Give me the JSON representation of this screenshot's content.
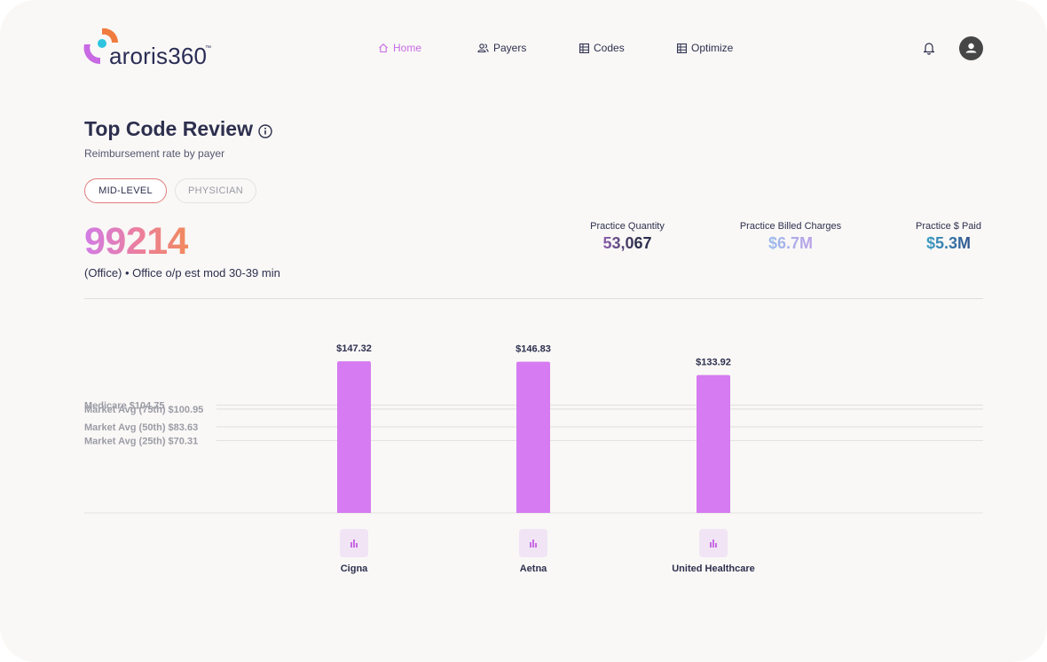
{
  "app": {
    "logo_text": "aroris360",
    "logo_tm": "™"
  },
  "nav": [
    {
      "label": "Home",
      "icon": "home-icon",
      "active": true
    },
    {
      "label": "Payers",
      "icon": "users-icon",
      "active": false
    },
    {
      "label": "Codes",
      "icon": "table-icon",
      "active": false
    },
    {
      "label": "Optimize",
      "icon": "table-icon",
      "active": false
    }
  ],
  "header": {
    "bell_icon": "bell-icon",
    "avatar_icon": "user-avatar-icon"
  },
  "page": {
    "title": "Top Code Review",
    "subtitle": "Reimbursement rate by payer",
    "toggle": {
      "mid_level": "MID-LEVEL",
      "physician": "PHYSICIAN",
      "selected": "MID-LEVEL"
    },
    "code": "99214",
    "code_description": "(Office) • Office o/p est mod 30-39 min"
  },
  "stats": {
    "quantity": {
      "label": "Practice Quantity",
      "value": "53,067"
    },
    "billed": {
      "label": "Practice Billed Charges",
      "value": "$6.7M"
    },
    "paid": {
      "label": "Practice $ Paid",
      "value": "$5.3M"
    }
  },
  "colors": {
    "bar": "#d67bf1",
    "accent": "#c86ae3",
    "ref_line": "#e4e3e0"
  },
  "chart_data": {
    "type": "bar",
    "categories": [
      "Cigna",
      "Aetna",
      "United Healthcare"
    ],
    "values": [
      147.32,
      146.83,
      133.92
    ],
    "value_labels": [
      "$147.32",
      "$146.83",
      "$133.92"
    ],
    "reference_lines": [
      {
        "label": "Medicare $104.75",
        "value": 104.75
      },
      {
        "label": "Market Avg (75th) $100.95",
        "value": 100.95
      },
      {
        "label": "Market Avg (50th) $83.63",
        "value": 83.63
      },
      {
        "label": "Market Avg (25th) $70.31",
        "value": 70.31
      }
    ],
    "title": "",
    "xlabel": "",
    "ylabel": "",
    "grid": false
  }
}
